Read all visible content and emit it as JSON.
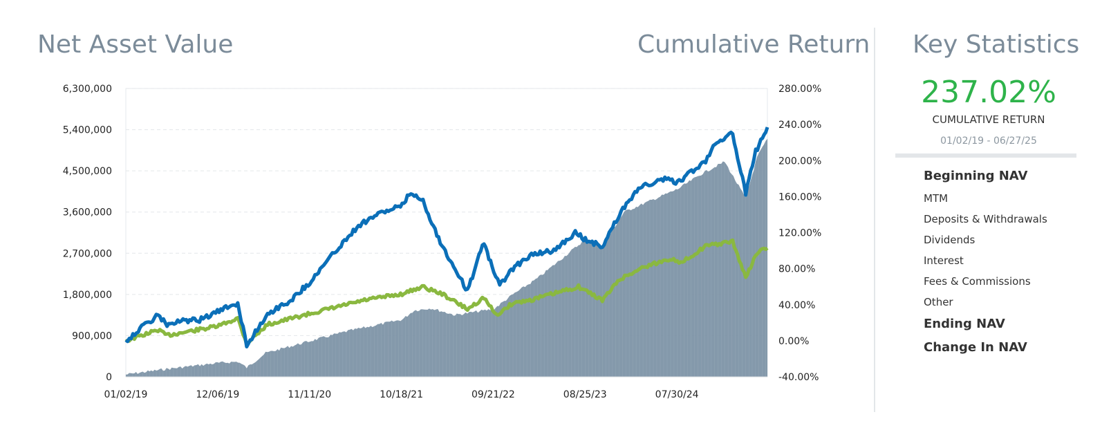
{
  "header": {
    "left_title": "Net Asset Value",
    "right_title": "Cumulative Return"
  },
  "key_statistics": {
    "title": "Key Statistics",
    "cumulative_return_value": "237.02%",
    "cumulative_return_label": "CUMULATIVE RETURN",
    "date_range": "01/02/19 - 06/27/25",
    "items": [
      {
        "label": "Beginning NAV",
        "emphasis": true
      },
      {
        "label": "MTM",
        "emphasis": false
      },
      {
        "label": "Deposits & Withdrawals",
        "emphasis": false
      },
      {
        "label": "Dividends",
        "emphasis": false
      },
      {
        "label": "Interest",
        "emphasis": false
      },
      {
        "label": "Fees & Commissions",
        "emphasis": false
      },
      {
        "label": "Other",
        "emphasis": false
      },
      {
        "label": "Ending NAV",
        "emphasis": true
      },
      {
        "label": "Change In NAV",
        "emphasis": true
      }
    ]
  },
  "colors": {
    "nav_area": "#7d93a7",
    "blue_line": "#0b6fb8",
    "green_line": "#8ab840",
    "accent_green": "#2eb34a",
    "title_gray": "#7b8b99"
  },
  "chart_data": {
    "type": "area",
    "y_left_ticks": [
      "0",
      "900,000",
      "1,800,000",
      "2,700,000",
      "3,600,000",
      "4,500,000",
      "5,400,000",
      "6,300,000"
    ],
    "y_right_ticks": [
      "-40.00%",
      "0.00%",
      "40.00%",
      "80.00%",
      "120.00%",
      "160.00%",
      "200.00%",
      "240.00%",
      "280.00%"
    ],
    "x_ticks": [
      "01/02/19",
      "12/06/19",
      "11/11/20",
      "10/18/21",
      "09/21/22",
      "08/25/23",
      "07/30/24"
    ],
    "ylim_left": [
      0,
      6300000
    ],
    "ylim_right": [
      -40,
      280
    ],
    "grid": true,
    "x_domain": [
      "2019-01-02",
      "2025-06-27"
    ],
    "series": [
      {
        "kind": "area",
        "axis": "left",
        "points": [
          [
            "2019-01-02",
            50000
          ],
          [
            "2019-06-01",
            170000
          ],
          [
            "2019-12-06",
            300000
          ],
          [
            "2020-02-20",
            330000
          ],
          [
            "2020-03-23",
            200000
          ],
          [
            "2020-06-01",
            520000
          ],
          [
            "2020-11-11",
            780000
          ],
          [
            "2021-04-01",
            1000000
          ],
          [
            "2021-10-18",
            1250000
          ],
          [
            "2021-12-01",
            1450000
          ],
          [
            "2022-02-01",
            1500000
          ],
          [
            "2022-05-01",
            1350000
          ],
          [
            "2022-09-21",
            1480000
          ],
          [
            "2022-12-01",
            1800000
          ],
          [
            "2023-03-01",
            2150000
          ],
          [
            "2023-08-25",
            3000000
          ],
          [
            "2023-10-27",
            2850000
          ],
          [
            "2024-01-15",
            3600000
          ],
          [
            "2024-07-30",
            4100000
          ],
          [
            "2024-11-01",
            4450000
          ],
          [
            "2025-01-20",
            4700000
          ],
          [
            "2025-04-08",
            3900000
          ],
          [
            "2025-05-20",
            4800000
          ],
          [
            "2025-06-27",
            5200000
          ]
        ]
      },
      {
        "kind": "line",
        "axis": "right",
        "points": [
          [
            "2019-01-02",
            0
          ],
          [
            "2019-03-15",
            18
          ],
          [
            "2019-05-01",
            28
          ],
          [
            "2019-06-03",
            18
          ],
          [
            "2019-08-01",
            22
          ],
          [
            "2019-10-01",
            23
          ],
          [
            "2019-12-06",
            32
          ],
          [
            "2020-02-19",
            42
          ],
          [
            "2020-03-23",
            -5
          ],
          [
            "2020-06-08",
            30
          ],
          [
            "2020-09-02",
            45
          ],
          [
            "2020-11-11",
            65
          ],
          [
            "2021-02-15",
            100
          ],
          [
            "2021-05-10",
            128
          ],
          [
            "2021-07-15",
            140
          ],
          [
            "2021-10-18",
            150
          ],
          [
            "2021-11-19",
            165
          ],
          [
            "2022-01-03",
            155
          ],
          [
            "2022-03-14",
            105
          ],
          [
            "2022-05-20",
            70
          ],
          [
            "2022-06-16",
            55
          ],
          [
            "2022-08-16",
            110
          ],
          [
            "2022-09-21",
            75
          ],
          [
            "2022-10-13",
            62
          ],
          [
            "2022-12-01",
            80
          ],
          [
            "2023-02-01",
            95
          ],
          [
            "2023-05-01",
            100
          ],
          [
            "2023-07-19",
            120
          ],
          [
            "2023-08-25",
            112
          ],
          [
            "2023-10-27",
            105
          ],
          [
            "2023-12-29",
            140
          ],
          [
            "2024-03-08",
            170
          ],
          [
            "2024-06-20",
            180
          ],
          [
            "2024-07-30",
            175
          ],
          [
            "2024-11-11",
            200
          ],
          [
            "2024-12-16",
            220
          ],
          [
            "2025-02-19",
            230
          ],
          [
            "2025-04-08",
            163
          ],
          [
            "2025-05-15",
            210
          ],
          [
            "2025-06-27",
            237
          ]
        ]
      },
      {
        "kind": "line",
        "axis": "right",
        "points": [
          [
            "2019-01-02",
            0
          ],
          [
            "2019-05-01",
            12
          ],
          [
            "2019-06-03",
            6
          ],
          [
            "2019-12-06",
            16
          ],
          [
            "2020-02-19",
            25
          ],
          [
            "2020-03-23",
            -3
          ],
          [
            "2020-06-08",
            18
          ],
          [
            "2020-11-11",
            30
          ],
          [
            "2021-06-01",
            45
          ],
          [
            "2021-10-18",
            52
          ],
          [
            "2021-12-31",
            60
          ],
          [
            "2022-03-14",
            52
          ],
          [
            "2022-06-16",
            35
          ],
          [
            "2022-08-16",
            48
          ],
          [
            "2022-09-30",
            28
          ],
          [
            "2022-12-01",
            42
          ],
          [
            "2023-02-01",
            45
          ],
          [
            "2023-07-31",
            60
          ],
          [
            "2023-10-27",
            45
          ],
          [
            "2023-12-29",
            68
          ],
          [
            "2024-03-28",
            82
          ],
          [
            "2024-07-16",
            92
          ],
          [
            "2024-08-05",
            85
          ],
          [
            "2024-11-11",
            105
          ],
          [
            "2025-02-19",
            110
          ],
          [
            "2025-04-08",
            70
          ],
          [
            "2025-05-20",
            98
          ],
          [
            "2025-06-27",
            103
          ]
        ]
      }
    ]
  }
}
